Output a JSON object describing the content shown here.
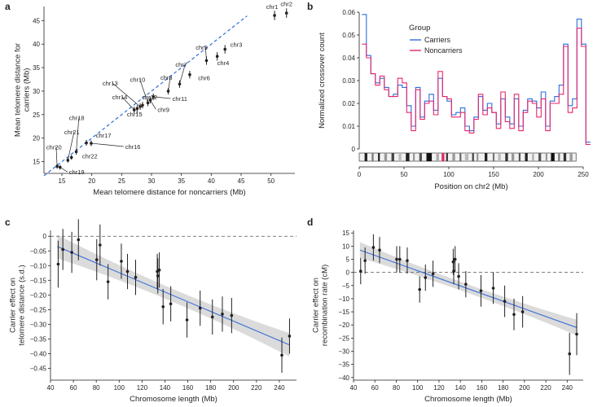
{
  "colors": {
    "carriers": "#2a6fdb",
    "noncarriers": "#e8266d",
    "fit": "#3a6fd8",
    "band": "#cfcfcf",
    "dash": "#2a6fdb"
  },
  "chart_data": [
    {
      "panel": "a",
      "type": "scatter",
      "xlabel": "Mean telomere distance for noncarriers (Mb)",
      "ylabel": "Mean telomere distance for carriers (Mb)",
      "xlim": [
        12,
        54
      ],
      "ylim": [
        12.5,
        48
      ],
      "xticks": [
        15,
        20,
        25,
        30,
        35,
        40,
        45,
        50
      ],
      "yticks": [
        15,
        20,
        25,
        30,
        35,
        40,
        45
      ],
      "identity_line": true,
      "points": [
        {
          "label": "chr1",
          "x": 50.6,
          "y": 46.1,
          "err": 1.0,
          "lx": 49.2,
          "ly": 47.5
        },
        {
          "label": "chr2",
          "x": 52.6,
          "y": 46.6,
          "err": 1.0,
          "lx": 51.6,
          "ly": 48.1
        },
        {
          "label": "chr3",
          "x": 42.3,
          "y": 38.9,
          "err": 0.9,
          "lx": 43.2,
          "ly": 39.4
        },
        {
          "label": "chr4",
          "x": 41.0,
          "y": 37.4,
          "err": 0.9,
          "lx": 41.0,
          "ly": 35.5
        },
        {
          "label": "chr5",
          "x": 39.2,
          "y": 36.5,
          "err": 0.9,
          "lx": 37.4,
          "ly": 38.8
        },
        {
          "label": "chr6",
          "x": 36.4,
          "y": 33.5,
          "err": 0.8,
          "lx": 37.8,
          "ly": 32.3
        },
        {
          "label": "chr7",
          "x": 34.7,
          "y": 31.5,
          "err": 0.8,
          "lx": 34.0,
          "ly": 35.2
        },
        {
          "label": "chr8",
          "x": 32.8,
          "y": 30.0,
          "err": 0.7,
          "lx": 31.5,
          "ly": 32.4
        },
        {
          "label": "chr9",
          "x": 29.8,
          "y": 28.1,
          "err": 0.7,
          "lx": 31.0,
          "ly": 25.6
        },
        {
          "label": "chr10",
          "x": 29.4,
          "y": 27.5,
          "err": 0.7,
          "lx": 26.4,
          "ly": 32.0
        },
        {
          "label": "chr11",
          "x": 30.3,
          "y": 28.8,
          "err": 0.7,
          "lx": 33.5,
          "ly": 27.9
        },
        {
          "label": "chr12",
          "x": 28.5,
          "y": 27.0,
          "err": 0.7,
          "lx": 28.4,
          "ly": 28.3
        },
        {
          "label": "chr13",
          "x": 28.1,
          "y": 26.7,
          "err": 0.7,
          "lx": 21.8,
          "ly": 31.2
        },
        {
          "label": "chr14",
          "x": 27.1,
          "y": 26.0,
          "err": 0.7,
          "lx": 23.4,
          "ly": 28.3
        },
        {
          "label": "chr15",
          "x": 27.6,
          "y": 26.3,
          "err": 0.7,
          "lx": 25.9,
          "ly": 24.6
        },
        {
          "label": "chr16",
          "x": 19.9,
          "y": 18.9,
          "err": 0.6,
          "lx": 25.6,
          "ly": 17.7
        },
        {
          "label": "chr17",
          "x": 19.1,
          "y": 19.0,
          "err": 0.6,
          "lx": 20.7,
          "ly": 20.1
        },
        {
          "label": "chr18",
          "x": 17.4,
          "y": 17.1,
          "err": 0.6,
          "lx": 16.2,
          "ly": 23.8
        },
        {
          "label": "chr19",
          "x": 14.7,
          "y": 13.8,
          "err": 0.5,
          "lx": 16.2,
          "ly": 12.3
        },
        {
          "label": "chr20",
          "x": 14.2,
          "y": 14.0,
          "err": 0.5,
          "lx": 12.4,
          "ly": 17.6
        },
        {
          "label": "chr21",
          "x": 16.0,
          "y": 15.3,
          "err": 0.5,
          "lx": 15.4,
          "ly": 20.8
        },
        {
          "label": "chr22",
          "x": 16.6,
          "y": 15.9,
          "err": 0.5,
          "lx": 18.4,
          "ly": 15.7
        }
      ]
    },
    {
      "panel": "b",
      "type": "line",
      "xlabel": "Position on chr2 (Mb)",
      "ylabel": "Normalized crossover count",
      "xlim": [
        0,
        250
      ],
      "ylim": [
        0,
        0.06
      ],
      "xticks": [
        0,
        50,
        100,
        150,
        200,
        250
      ],
      "yticks": [
        0,
        0.01,
        0.02,
        0.03,
        0.04,
        0.05,
        0.06
      ],
      "legend_title": "Group",
      "bin_width": 5,
      "series": [
        {
          "name": "Carriers",
          "values": [
            0.059,
            0.041,
            0.033,
            0.029,
            0.031,
            0.027,
            0.023,
            0.024,
            0.028,
            0.027,
            0.019,
            0.01,
            0.027,
            0.014,
            0.021,
            0.024,
            0.017,
            0.031,
            0.023,
            0.021,
            0.015,
            0.016,
            0.018,
            0.01,
            0.008,
            0.014,
            0.023,
            0.017,
            0.02,
            0.016,
            0.011,
            0.022,
            0.014,
            0.011,
            0.022,
            0.01,
            0.017,
            0.022,
            0.021,
            0.018,
            0.025,
            0.01,
            0.021,
            0.023,
            0.028,
            0.046,
            0.019,
            0.022,
            0.057,
            0.046,
            0.003
          ]
        },
        {
          "name": "Noncarriers",
          "values": [
            0.046,
            0.04,
            0.033,
            0.028,
            0.032,
            0.026,
            0.023,
            0.023,
            0.031,
            0.029,
            0.016,
            0.008,
            0.026,
            0.013,
            0.02,
            0.021,
            0.015,
            0.034,
            0.023,
            0.022,
            0.014,
            0.014,
            0.016,
            0.008,
            0.007,
            0.013,
            0.024,
            0.015,
            0.018,
            0.016,
            0.009,
            0.025,
            0.012,
            0.009,
            0.024,
            0.008,
            0.016,
            0.021,
            0.02,
            0.014,
            0.022,
            0.008,
            0.02,
            0.02,
            0.024,
            0.045,
            0.016,
            0.018,
            0.053,
            0.045,
            0.002
          ]
        }
      ],
      "ideogram": true
    },
    {
      "panel": "c",
      "type": "scatter",
      "xlabel": "Chromosome length (Mb)",
      "ylabel": "Carrier effect on telomere distance (s.d.)",
      "xlim": [
        40,
        255
      ],
      "ylim": [
        -0.49,
        0.02
      ],
      "xticks": [
        40,
        60,
        80,
        100,
        120,
        140,
        160,
        180,
        200,
        220,
        240
      ],
      "yticks": [
        0,
        -0.05,
        -0.1,
        -0.15,
        -0.2,
        -0.25,
        -0.3,
        -0.35,
        -0.4,
        -0.45
      ],
      "fit": {
        "x0": 46,
        "y0": -0.035,
        "x1": 249,
        "y1": -0.37,
        "band": 0.04
      },
      "points": [
        {
          "x": 46.7,
          "y": -0.095,
          "err": 0.08
        },
        {
          "x": 50.8,
          "y": -0.045,
          "err": 0.07
        },
        {
          "x": 58.6,
          "y": -0.055,
          "err": 0.07
        },
        {
          "x": 64.4,
          "y": -0.012,
          "err": 0.07
        },
        {
          "x": 80.4,
          "y": -0.08,
          "err": 0.07
        },
        {
          "x": 83.3,
          "y": -0.03,
          "err": 0.07
        },
        {
          "x": 90.3,
          "y": -0.155,
          "err": 0.06
        },
        {
          "x": 101.9,
          "y": -0.085,
          "err": 0.06
        },
        {
          "x": 107.3,
          "y": -0.12,
          "err": 0.06
        },
        {
          "x": 114.4,
          "y": -0.14,
          "err": 0.06
        },
        {
          "x": 133.3,
          "y": -0.12,
          "err": 0.06
        },
        {
          "x": 133.8,
          "y": -0.135,
          "err": 0.06
        },
        {
          "x": 135.1,
          "y": -0.115,
          "err": 0.06
        },
        {
          "x": 138.4,
          "y": -0.24,
          "err": 0.06
        },
        {
          "x": 145.1,
          "y": -0.23,
          "err": 0.06
        },
        {
          "x": 159.3,
          "y": -0.285,
          "err": 0.06
        },
        {
          "x": 170.8,
          "y": -0.245,
          "err": 0.06
        },
        {
          "x": 181.5,
          "y": -0.275,
          "err": 0.06
        },
        {
          "x": 190.2,
          "y": -0.265,
          "err": 0.06
        },
        {
          "x": 198.3,
          "y": -0.27,
          "err": 0.06
        },
        {
          "x": 242.2,
          "y": -0.405,
          "err": 0.06
        },
        {
          "x": 248.9,
          "y": -0.34,
          "err": 0.06
        }
      ]
    },
    {
      "panel": "d",
      "type": "scatter",
      "xlabel": "Chromosome length (Mb)",
      "ylabel": "Carrier effect on recombination rate (cM)",
      "xlim": [
        40,
        255
      ],
      "ylim": [
        -41,
        16
      ],
      "xticks": [
        40,
        60,
        80,
        100,
        120,
        140,
        160,
        180,
        200,
        220,
        240
      ],
      "yticks": [
        15,
        10,
        5,
        0,
        -5,
        -10,
        -15,
        -20,
        -25,
        -30,
        -35,
        -40
      ],
      "fit": {
        "x0": 46,
        "y0": 8.5,
        "x1": 249,
        "y1": -21,
        "band": 3.0
      },
      "points": [
        {
          "x": 46.7,
          "y": 0.5,
          "err": 5
        },
        {
          "x": 50.8,
          "y": 4.5,
          "err": 5
        },
        {
          "x": 58.6,
          "y": 9.5,
          "err": 5
        },
        {
          "x": 64.4,
          "y": 8.5,
          "err": 5
        },
        {
          "x": 80.4,
          "y": 5.0,
          "err": 5
        },
        {
          "x": 83.3,
          "y": 5.0,
          "err": 5
        },
        {
          "x": 90.3,
          "y": 4.5,
          "err": 5
        },
        {
          "x": 101.9,
          "y": -6.5,
          "err": 5
        },
        {
          "x": 107.3,
          "y": -2.0,
          "err": 5
        },
        {
          "x": 114.4,
          "y": -0.5,
          "err": 5
        },
        {
          "x": 133.3,
          "y": 4.0,
          "err": 5
        },
        {
          "x": 133.8,
          "y": 0.5,
          "err": 5
        },
        {
          "x": 135.1,
          "y": 5.0,
          "err": 5
        },
        {
          "x": 138.4,
          "y": -1.5,
          "err": 5
        },
        {
          "x": 145.1,
          "y": -4.5,
          "err": 5
        },
        {
          "x": 159.3,
          "y": -7.0,
          "err": 6
        },
        {
          "x": 170.8,
          "y": -6.0,
          "err": 6
        },
        {
          "x": 181.5,
          "y": -11.0,
          "err": 6
        },
        {
          "x": 190.2,
          "y": -16.0,
          "err": 6
        },
        {
          "x": 198.3,
          "y": -15.0,
          "err": 6
        },
        {
          "x": 242.2,
          "y": -31.0,
          "err": 8
        },
        {
          "x": 248.9,
          "y": -23.5,
          "err": 8
        }
      ]
    }
  ]
}
